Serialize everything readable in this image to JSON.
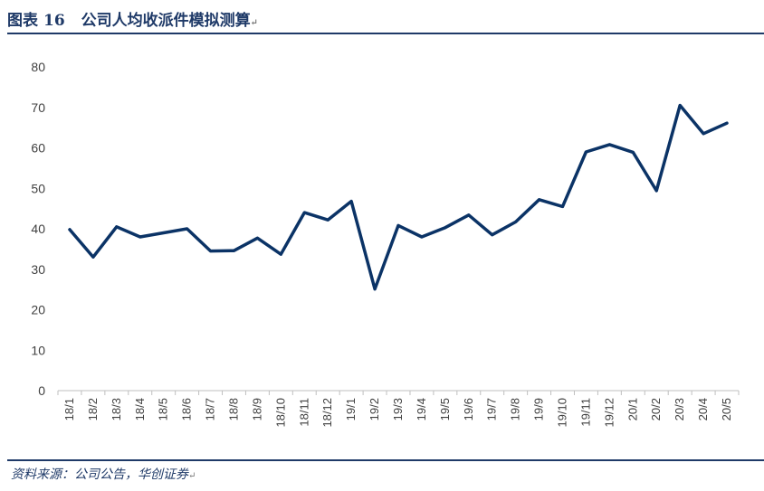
{
  "header": {
    "figure_label": "图表",
    "figure_number": "16",
    "title": "公司人均收派件模拟测算",
    "return_mark": "↵"
  },
  "footer": {
    "source": "资料来源：公司公告，华创证券",
    "return_mark": "↵"
  },
  "chart_data": {
    "type": "line",
    "categories": [
      "18/1",
      "18/2",
      "18/3",
      "18/4",
      "18/5",
      "18/6",
      "18/7",
      "18/8",
      "18/9",
      "18/10",
      "18/11",
      "18/12",
      "19/1",
      "19/2",
      "19/3",
      "19/4",
      "19/5",
      "19/6",
      "19/7",
      "19/8",
      "19/9",
      "19/10",
      "19/11",
      "19/12",
      "20/1",
      "20/2",
      "20/3",
      "20/4",
      "20/5"
    ],
    "series": [
      {
        "values": [
          39.8,
          33.0,
          40.5,
          38.0,
          39.0,
          40.0,
          34.5,
          34.6,
          37.7,
          33.7,
          44.0,
          42.2,
          46.8,
          25.1,
          40.8,
          38.0,
          40.3,
          43.4,
          38.5,
          41.7,
          47.2,
          45.5,
          59.0,
          60.8,
          58.9,
          49.4,
          70.5,
          63.5,
          66.1
        ]
      }
    ],
    "y_ticks": [
      0,
      10,
      20,
      30,
      40,
      50,
      60,
      70,
      80
    ],
    "ylim": [
      0,
      80
    ],
    "grid": false,
    "legend": "none",
    "line_color": "#0b3366"
  }
}
